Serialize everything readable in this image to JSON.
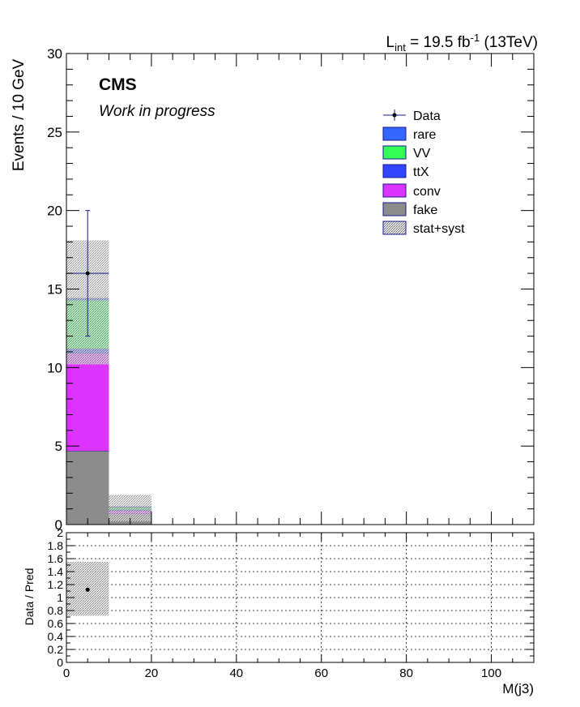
{
  "header": {
    "lumi_prefix": "L",
    "lumi_sub": "int",
    "lumi_value": " = 19.5 fb",
    "lumi_sup": "-1",
    "lumi_suffix": " (13TeV)",
    "experiment": "CMS",
    "status": "Work in progress"
  },
  "colors": {
    "rare": "#3366ff",
    "VV": "#33ff55",
    "ttX": "#3344ff",
    "conv": "#dd33ff",
    "fake": "#8c8c8c",
    "data_error": "#1a1a8c",
    "band_fill": "#c8c8c8"
  },
  "chart_data": [
    {
      "type": "bar",
      "stacked": true,
      "bin_edges": [
        0,
        10,
        20
      ],
      "ylabel": "Events / 10 GeV",
      "xlim": [
        0,
        110
      ],
      "ylim": [
        0,
        30
      ],
      "y_ticks": [
        "0",
        "5",
        "10",
        "15",
        "20",
        "25",
        "30"
      ],
      "legend_position": "top-right",
      "series": [
        {
          "name": "fake",
          "values": [
            4.7,
            0.7
          ]
        },
        {
          "name": "conv",
          "values": [
            6.2,
            0.2
          ]
        },
        {
          "name": "ttX",
          "values": [
            0.3,
            0.05
          ]
        },
        {
          "name": "VV",
          "values": [
            3.1,
            0.15
          ]
        },
        {
          "name": "rare",
          "values": [
            0.1,
            0.02
          ]
        }
      ],
      "data": {
        "name": "Data",
        "x": [
          5
        ],
        "y": [
          16
        ],
        "yerr_low": [
          4
        ],
        "yerr_high": [
          4
        ]
      },
      "uncertainty_band": {
        "name": "stat+syst",
        "low": [
          10.2,
          0.2
        ],
        "high": [
          18.1,
          1.9
        ]
      },
      "legend": [
        "Data",
        "rare",
        "VV",
        "ttX",
        "conv",
        "fake",
        "stat+syst"
      ]
    },
    {
      "type": "scatter",
      "xlabel": "M(j3)",
      "ylabel": "Data / Pred",
      "xlim": [
        0,
        110
      ],
      "ylim": [
        0,
        2
      ],
      "x_ticks": [
        "0",
        "20",
        "40",
        "60",
        "80",
        "100"
      ],
      "y_ticks": [
        "0",
        "0.2",
        "0.4",
        "0.6",
        "0.8",
        "1",
        "1.2",
        "1.4",
        "1.6",
        "1.8",
        "2"
      ],
      "grid": true,
      "ratio_points": [
        {
          "x": 5,
          "y": 1.12
        }
      ],
      "band": [
        {
          "x0": 0,
          "x1": 10,
          "low": 0.72,
          "high": 1.55
        }
      ]
    }
  ]
}
